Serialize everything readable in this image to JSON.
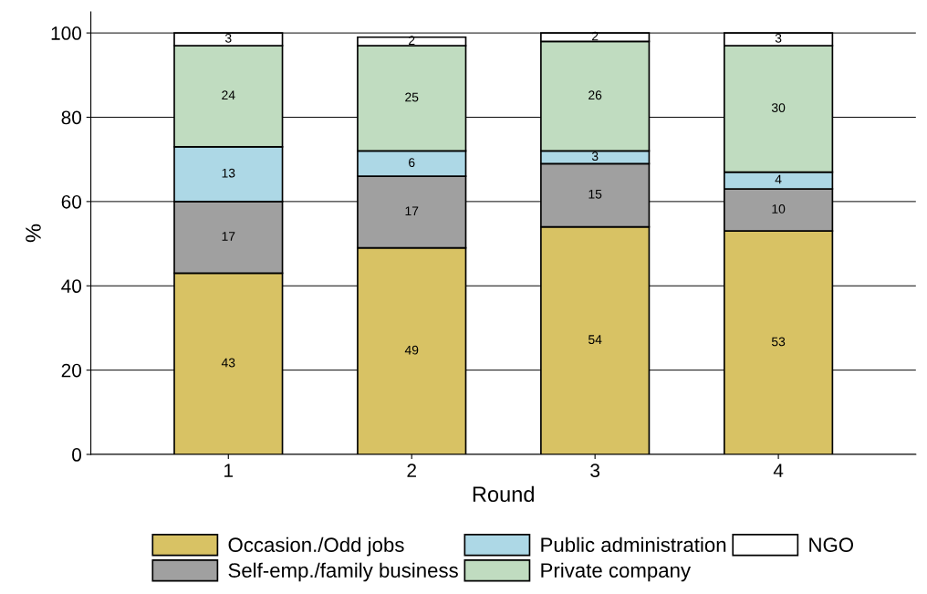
{
  "chart_data": {
    "type": "bar",
    "stacked": true,
    "xlabel": "Round",
    "ylabel": "%",
    "categories": [
      "1",
      "2",
      "3",
      "4"
    ],
    "series": [
      {
        "name": "Occasion./Odd jobs",
        "color": "#d8c264",
        "values": [
          43,
          49,
          54,
          53
        ]
      },
      {
        "name": "Self-emp./family business",
        "color": "#a0a0a0",
        "values": [
          17,
          17,
          15,
          10
        ]
      },
      {
        "name": "Public administration",
        "color": "#add8e6",
        "values": [
          13,
          6,
          3,
          4
        ]
      },
      {
        "name": "Private company",
        "color": "#c0dcc0",
        "values": [
          24,
          25,
          26,
          30
        ]
      },
      {
        "name": "NGO",
        "color": "#ffffff",
        "values": [
          3,
          2,
          2,
          3
        ]
      }
    ],
    "ylim": [
      0,
      105
    ],
    "yticks": [
      0,
      20,
      40,
      60,
      80,
      100
    ],
    "grid": "y",
    "legend": "bottom",
    "data_labels": true
  }
}
